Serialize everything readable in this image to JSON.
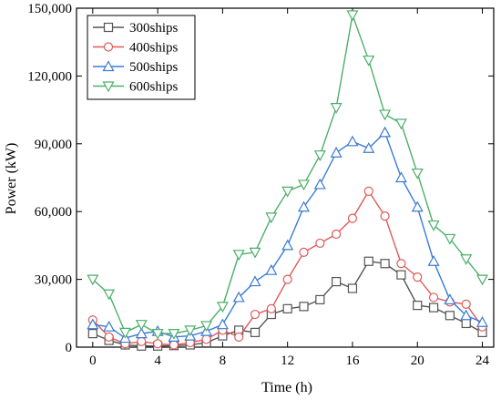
{
  "chart_data": {
    "type": "line",
    "title": "",
    "xlabel": "Time (h)",
    "ylabel": "Power (kW)",
    "xlim": [
      -1,
      24.7
    ],
    "ylim": [
      0,
      150000
    ],
    "xticks": [
      0,
      4,
      8,
      12,
      16,
      20,
      24
    ],
    "xtick_labels": [
      "0",
      "4",
      "8",
      "12",
      "16",
      "20",
      "24"
    ],
    "yticks": [
      0,
      30000,
      60000,
      90000,
      120000,
      150000
    ],
    "ytick_labels": [
      "0",
      "30,000",
      "60,000",
      "90,000",
      "120,000",
      "150,000"
    ],
    "grid": false,
    "legend_position": "top-left",
    "x": [
      0,
      1,
      2,
      3,
      4,
      5,
      6,
      7,
      8,
      9,
      10,
      11,
      12,
      13,
      14,
      15,
      16,
      17,
      18,
      19,
      20,
      21,
      22,
      23,
      24
    ],
    "series": [
      {
        "name": "300ships",
        "color": "#555555",
        "marker": "square",
        "values": [
          6000,
          3000,
          1000,
          500,
          500,
          700,
          1000,
          2000,
          5000,
          7500,
          6500,
          14500,
          17000,
          18000,
          21000,
          29000,
          26000,
          38000,
          37000,
          32000,
          18500,
          17500,
          14000,
          10500,
          6500
        ]
      },
      {
        "name": "400ships",
        "color": "#e05a5a",
        "marker": "circle",
        "values": [
          12000,
          4500,
          1500,
          2500,
          1500,
          1000,
          2000,
          3500,
          7500,
          4500,
          14500,
          17000,
          30000,
          42000,
          46000,
          50000,
          57000,
          69000,
          58000,
          37000,
          31000,
          22000,
          20000,
          19000,
          9000
        ]
      },
      {
        "name": "500ships",
        "color": "#3a7bd5",
        "marker": "triangle-up",
        "values": [
          10000,
          9000,
          4000,
          6000,
          7000,
          4500,
          5000,
          7000,
          10000,
          22000,
          29000,
          34000,
          45000,
          62000,
          72000,
          86000,
          91000,
          88000,
          95000,
          75000,
          62000,
          38000,
          21000,
          14000,
          11000
        ]
      },
      {
        "name": "600ships",
        "color": "#4caf6a",
        "marker": "triangle-down",
        "values": [
          30000,
          23500,
          6500,
          10000,
          6000,
          6000,
          7500,
          9500,
          18000,
          41000,
          42000,
          57500,
          69000,
          72000,
          85000,
          106000,
          147000,
          127000,
          103000,
          99000,
          77000,
          54000,
          48000,
          39000,
          30000
        ]
      }
    ]
  }
}
